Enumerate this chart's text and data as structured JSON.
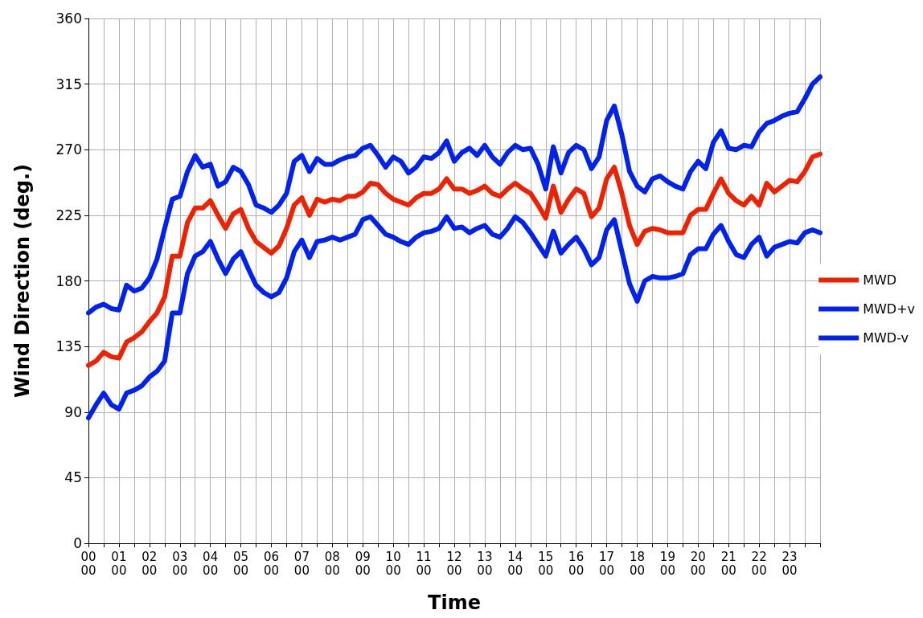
{
  "chart_data": {
    "type": "line",
    "xlabel": "Time",
    "ylabel": "Wind Direction (deg.)",
    "categories": [
      "00\n00",
      null,
      null,
      null,
      "01\n00",
      null,
      null,
      null,
      "02\n00",
      null,
      null,
      null,
      "03\n00",
      null,
      null,
      null,
      "04\n00",
      null,
      null,
      null,
      "05\n00",
      null,
      null,
      null,
      "06\n00",
      null,
      null,
      null,
      "07\n00",
      null,
      null,
      null,
      "08\n00",
      null,
      null,
      null,
      "09\n00",
      null,
      null,
      null,
      "10\n00",
      null,
      null,
      null,
      "11\n00",
      null,
      null,
      null,
      "12\n00",
      null,
      null,
      null,
      "13\n00",
      null,
      null,
      null,
      "14\n00",
      null,
      null,
      null,
      "15\n00",
      null,
      null,
      null,
      "16\n00",
      null,
      null,
      null,
      "17\n00",
      null,
      null,
      null,
      "18\n00",
      null,
      null,
      null,
      "19\n00",
      null,
      null,
      null,
      "20\n00",
      null,
      null,
      null,
      "21\n00",
      null,
      null,
      null,
      "22\n00",
      null,
      null,
      null,
      "23\n00",
      null,
      null,
      null,
      null
    ],
    "ylim": [
      0,
      360
    ],
    "yticks": [
      0,
      45,
      90,
      135,
      180,
      225,
      270,
      315,
      360
    ],
    "grid": true,
    "legend": "right",
    "marker": "none",
    "line_style": "solid",
    "series": [
      {
        "name": "MWD",
        "color": "#ee2200",
        "values": [
          122,
          125,
          131,
          128,
          127,
          138,
          141,
          145,
          152,
          158,
          169,
          197,
          197,
          220,
          230,
          230,
          235,
          225,
          216,
          226,
          229,
          216,
          207,
          203,
          199,
          204,
          216,
          232,
          237,
          225,
          236,
          234,
          236,
          235,
          238,
          238,
          241,
          247,
          246,
          240,
          236,
          234,
          232,
          237,
          240,
          240,
          243,
          250,
          243,
          243,
          240,
          242,
          245,
          240,
          238,
          243,
          247,
          243,
          240,
          232,
          223,
          245,
          227,
          236,
          243,
          240,
          224,
          230,
          250,
          258,
          240,
          218,
          205,
          214,
          216,
          215,
          213,
          213,
          213,
          225,
          229,
          229,
          240,
          250,
          240,
          235,
          232,
          238,
          232,
          247,
          241,
          245,
          249,
          248,
          255,
          265,
          267
        ]
      },
      {
        "name": "MWD+v",
        "color": "#0022ee",
        "values": [
          158,
          162,
          164,
          161,
          160,
          177,
          173,
          175,
          182,
          195,
          216,
          236,
          238,
          255,
          266,
          258,
          260,
          245,
          248,
          258,
          255,
          246,
          232,
          230,
          227,
          232,
          240,
          262,
          266,
          255,
          264,
          260,
          260,
          263,
          265,
          266,
          271,
          273,
          266,
          258,
          265,
          262,
          254,
          258,
          265,
          264,
          268,
          276,
          262,
          268,
          271,
          266,
          273,
          265,
          260,
          268,
          273,
          270,
          271,
          260,
          243,
          272,
          254,
          268,
          273,
          270,
          257,
          265,
          290,
          300,
          280,
          255,
          245,
          241,
          250,
          252,
          248,
          245,
          243,
          255,
          262,
          257,
          275,
          283,
          271,
          270,
          273,
          272,
          282,
          288,
          290,
          293,
          295,
          296,
          305,
          315,
          320
        ]
      },
      {
        "name": "MWD-v",
        "color": "#0022ee",
        "values": [
          86,
          95,
          103,
          95,
          92,
          103,
          105,
          108,
          114,
          118,
          125,
          158,
          158,
          185,
          197,
          200,
          207,
          195,
          185,
          195,
          200,
          188,
          177,
          172,
          169,
          172,
          182,
          200,
          208,
          196,
          207,
          208,
          210,
          208,
          210,
          212,
          222,
          224,
          218,
          212,
          210,
          207,
          205,
          210,
          213,
          214,
          216,
          224,
          216,
          217,
          213,
          216,
          218,
          212,
          210,
          216,
          224,
          220,
          213,
          205,
          197,
          214,
          199,
          205,
          210,
          202,
          191,
          196,
          215,
          222,
          200,
          178,
          166,
          180,
          183,
          182,
          182,
          183,
          185,
          198,
          202,
          202,
          212,
          218,
          207,
          198,
          196,
          205,
          210,
          197,
          203,
          205,
          207,
          206,
          213,
          215,
          213
        ]
      }
    ]
  }
}
